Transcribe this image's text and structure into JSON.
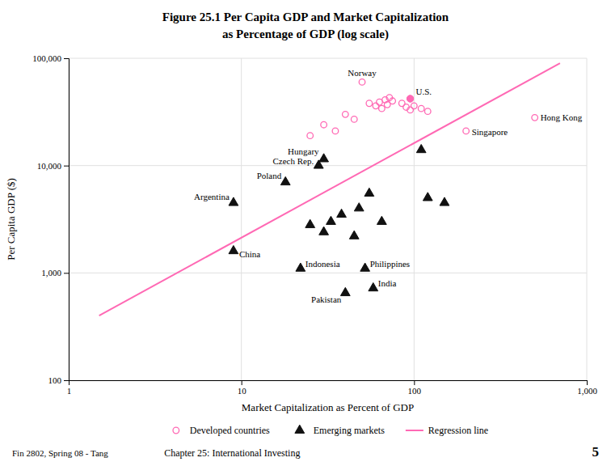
{
  "chart_data": {
    "type": "scatter",
    "title": "Figure 25.1 Per Capita GDP and Market Capitalization",
    "subtitle": "as Percentage of GDP (log scale)",
    "x_label": "Market Capitalization as Percent of GDP",
    "y_label": "Per Capita GDP ($)",
    "log": true,
    "grid": true,
    "legend": "bottom",
    "xlim": [
      1,
      1000
    ],
    "ylim": [
      100,
      100000
    ],
    "xticks": [
      1,
      10,
      100,
      {
        "value": 1000,
        "label": "1,000"
      }
    ],
    "yticks": [
      100,
      {
        "value": 1000,
        "label": "1,000"
      },
      {
        "value": 10000,
        "label": "10,000"
      },
      {
        "value": 100000,
        "label": "100,000"
      }
    ],
    "series": [
      {
        "name": "Developed countries",
        "type": "scatter",
        "marker": "open-circle",
        "color": "#FF69B4",
        "x": [
          50,
          95,
          500,
          200,
          55,
          60,
          65,
          70,
          75,
          72,
          68,
          63,
          85,
          90,
          95,
          100,
          110,
          120,
          40,
          45,
          30,
          35,
          25
        ],
        "values": [
          60000,
          42000,
          28000,
          21000,
          38000,
          36000,
          34000,
          37000,
          40000,
          43000,
          41000,
          39000,
          38000,
          35000,
          33000,
          36000,
          34000,
          32000,
          30000,
          27000,
          24000,
          21000,
          19000
        ],
        "labels": [
          "Norway",
          null,
          "Hong Kong",
          "Singapore",
          null,
          null,
          null,
          null,
          null,
          null,
          null,
          null,
          null,
          null,
          null,
          null,
          null,
          null,
          null,
          null,
          null,
          null,
          null
        ]
      },
      {
        "type": "scatter",
        "marker": "circle",
        "color": "#FF69B4",
        "x": [
          95
        ],
        "values": [
          42000
        ],
        "labels": [
          "U.S."
        ]
      },
      {
        "name": "Emerging markets",
        "type": "scatter",
        "marker": "triangle",
        "color": "#111111",
        "x": [
          30,
          28,
          18,
          9,
          9,
          22,
          52,
          40,
          58,
          38,
          48,
          33,
          55,
          65,
          25,
          30,
          45,
          120,
          150,
          110
        ],
        "values": [
          11500,
          10000,
          7000,
          4500,
          1600,
          1100,
          1100,
          650,
          720,
          3500,
          4000,
          3000,
          5500,
          3000,
          2800,
          2400,
          2200,
          5000,
          4500,
          14000
        ],
        "labels": [
          "Hungary",
          "Czech Rep.",
          "Poland",
          "Argentina",
          "China",
          "Indonesia",
          "Philippines",
          "Pakistan",
          "India",
          null,
          null,
          null,
          null,
          null,
          null,
          null,
          null,
          null,
          null,
          null
        ]
      },
      {
        "name": "Regression line",
        "type": "line",
        "color": "#FF69B4",
        "x": [
          1.5,
          700
        ],
        "values": [
          400,
          90000
        ]
      }
    ],
    "annotations": [
      {
        "text": "Fin 2802, Spring 08 - Tang"
      },
      {
        "text": "Chapter 25: International Investing"
      },
      {
        "text": "5"
      }
    ]
  }
}
